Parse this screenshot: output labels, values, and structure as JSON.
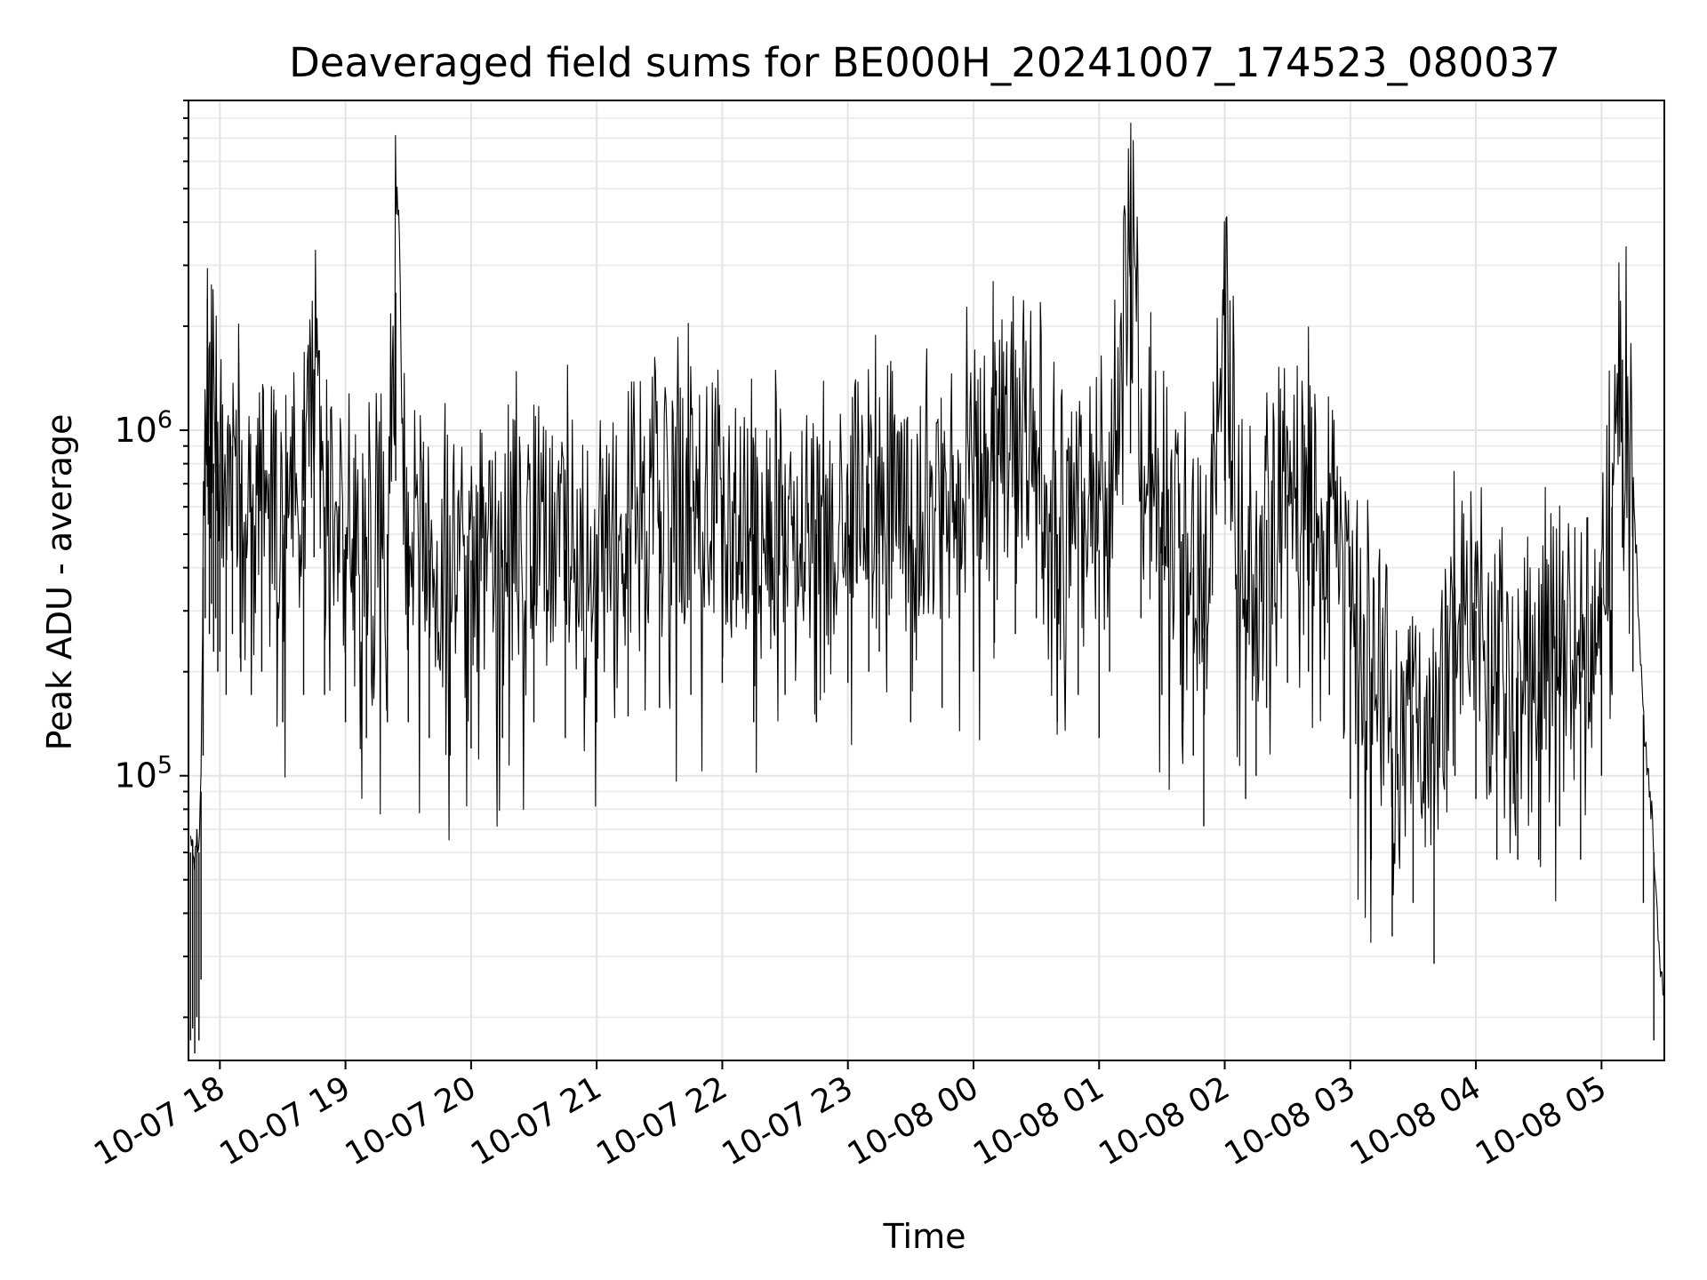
{
  "chart_data": {
    "type": "line",
    "title": "Deaveraged field sums for BE000H_20241007_174523_080037",
    "xlabel": "Time",
    "ylabel": "Peak ADU - average",
    "y_scale": "log",
    "grid": "major and minor",
    "xlim": [
      "2024-10-07 17:45",
      "2024-10-08 05:30"
    ],
    "ylim": [
      15000,
      9000000
    ],
    "x_ticks": [
      "10-07 18",
      "10-07 19",
      "10-07 20",
      "10-07 21",
      "10-07 22",
      "10-07 23",
      "10-08 00",
      "10-08 01",
      "10-08 02",
      "10-08 03",
      "10-08 04",
      "10-08 05"
    ],
    "y_ticks": [
      {
        "value": 100000,
        "base": "10",
        "exp": "5"
      },
      {
        "value": 1000000,
        "base": "10",
        "exp": "6"
      }
    ],
    "series": [
      {
        "color": "#000000",
        "x": [
          "2024-10-07 17:46",
          "2024-10-07 17:47",
          "2024-10-07 17:48",
          "2024-10-07 17:49",
          "2024-10-07 17:50",
          "2024-10-07 17:51",
          "2024-10-07 17:52",
          "2024-10-07 17:53",
          "2024-10-07 17:54",
          "2024-10-07 17:55",
          "2024-10-07 17:56",
          "2024-10-07 17:57",
          "2024-10-07 17:58",
          "2024-10-07 17:59",
          "2024-10-07 18:00",
          "2024-10-07 18:03",
          "2024-10-07 18:06",
          "2024-10-07 18:10",
          "2024-10-07 18:15",
          "2024-10-07 18:20",
          "2024-10-07 18:30",
          "2024-10-07 18:40",
          "2024-10-07 18:45",
          "2024-10-07 18:50",
          "2024-10-07 19:00",
          "2024-10-07 19:10",
          "2024-10-07 19:20",
          "2024-10-07 19:24",
          "2024-10-07 19:30",
          "2024-10-07 19:40",
          "2024-10-07 19:50",
          "2024-10-07 20:00",
          "2024-10-07 20:15",
          "2024-10-07 20:30",
          "2024-10-07 20:45",
          "2024-10-07 21:00",
          "2024-10-07 21:15",
          "2024-10-07 21:30",
          "2024-10-07 21:45",
          "2024-10-07 22:00",
          "2024-10-07 22:15",
          "2024-10-07 22:30",
          "2024-10-07 22:45",
          "2024-10-07 23:00",
          "2024-10-07 23:10",
          "2024-10-07 23:15",
          "2024-10-07 23:30",
          "2024-10-07 23:45",
          "2024-10-08 00:00",
          "2024-10-08 00:10",
          "2024-10-08 00:20",
          "2024-10-08 00:30",
          "2024-10-08 00:40",
          "2024-10-08 00:50",
          "2024-10-08 01:00",
          "2024-10-08 01:05",
          "2024-10-08 01:15",
          "2024-10-08 01:20",
          "2024-10-08 01:30",
          "2024-10-08 01:40",
          "2024-10-08 01:45",
          "2024-10-08 01:50",
          "2024-10-08 02:00",
          "2024-10-08 02:10",
          "2024-10-08 02:15",
          "2024-10-08 02:20",
          "2024-10-08 02:30",
          "2024-10-08 02:40",
          "2024-10-08 02:50",
          "2024-10-08 03:00",
          "2024-10-08 03:10",
          "2024-10-08 03:20",
          "2024-10-08 03:30",
          "2024-10-08 03:40",
          "2024-10-08 03:50",
          "2024-10-08 04:00",
          "2024-10-08 04:10",
          "2024-10-08 04:20",
          "2024-10-08 04:30",
          "2024-10-08 04:40",
          "2024-10-08 04:50",
          "2024-10-08 05:00",
          "2024-10-08 05:05",
          "2024-10-08 05:10",
          "2024-10-08 05:15",
          "2024-10-08 05:20",
          "2024-10-08 05:25",
          "2024-10-08 05:30"
        ],
        "y": [
          60000,
          65000,
          55000,
          70000,
          60000,
          90000,
          400000,
          1000000,
          2400000,
          900000,
          1100000,
          800000,
          1000000,
          700000,
          800000,
          600000,
          900000,
          700000,
          600000,
          700000,
          500000,
          600000,
          1500000,
          600000,
          500000,
          450000,
          500000,
          2500000,
          500000,
          450000,
          400000,
          420000,
          450000,
          500000,
          450000,
          500000,
          520000,
          550000,
          600000,
          650000,
          500000,
          600000,
          500000,
          650000,
          700000,
          800000,
          500000,
          550000,
          700000,
          850000,
          900000,
          1000000,
          500000,
          600000,
          450000,
          700000,
          3000000,
          1000000,
          600000,
          500000,
          400000,
          250000,
          2500000,
          300000,
          350000,
          550000,
          650000,
          700000,
          600000,
          300000,
          200000,
          120000,
          150000,
          100000,
          350000,
          300000,
          200000,
          200000,
          200000,
          250000,
          200000,
          350000,
          600000,
          1600000,
          700000,
          150000,
          60000,
          20000
        ]
      }
    ]
  }
}
